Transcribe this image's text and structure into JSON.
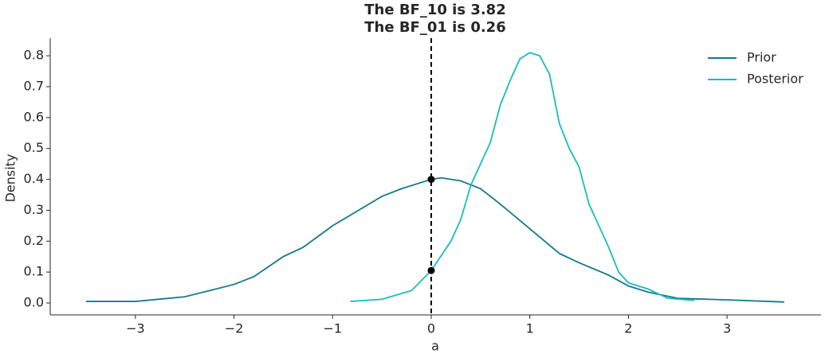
{
  "chart_data": {
    "type": "line",
    "title": [
      "The BF_10 is 3.82",
      "The BF_01 is 0.26"
    ],
    "xlabel": "a",
    "ylabel": "Density",
    "xlim": [
      -3.864,
      3.953
    ],
    "ylim": [
      -0.0386,
      0.857
    ],
    "xticks": [
      {
        "value": -3,
        "label": "−3"
      },
      {
        "value": -2,
        "label": "−2"
      },
      {
        "value": -1,
        "label": "−1"
      },
      0,
      1,
      2,
      3
    ],
    "yticks": [
      {
        "value": 0,
        "label": "0.0"
      },
      0.1,
      0.2,
      0.3,
      0.4,
      0.5,
      0.6,
      0.7,
      0.8
    ],
    "legend": "upper right",
    "series": [
      {
        "name": "Prior",
        "color": "#137a8c",
        "x": [
          -3.5,
          -3,
          -2.5,
          -2,
          -1.8,
          -1.5,
          -1.3,
          -1,
          -0.5,
          -0.3,
          0,
          0.1,
          0.3,
          0.5,
          0.7,
          1,
          1.3,
          1.5,
          1.8,
          2,
          2.2,
          2.5,
          3,
          3.58
        ],
        "values": [
          0.005,
          0.005,
          0.02,
          0.06,
          0.085,
          0.15,
          0.18,
          0.25,
          0.345,
          0.37,
          0.4,
          0.405,
          0.395,
          0.37,
          0.32,
          0.24,
          0.16,
          0.13,
          0.09,
          0.055,
          0.035,
          0.015,
          0.01,
          0.003
        ]
      },
      {
        "name": "Posterior",
        "color": "#17bcc4",
        "x": [
          -0.82,
          -0.5,
          -0.2,
          0,
          0.2,
          0.3,
          0.4,
          0.5,
          0.6,
          0.7,
          0.8,
          0.9,
          1.0,
          1.1,
          1.2,
          1.3,
          1.4,
          1.5,
          1.6,
          1.7,
          1.8,
          1.9,
          2.0,
          2.2,
          2.4,
          2.67
        ],
        "values": [
          0.005,
          0.012,
          0.04,
          0.105,
          0.2,
          0.27,
          0.38,
          0.45,
          0.52,
          0.64,
          0.72,
          0.79,
          0.81,
          0.8,
          0.74,
          0.58,
          0.5,
          0.44,
          0.32,
          0.25,
          0.18,
          0.1,
          0.065,
          0.045,
          0.015,
          0.008
        ]
      }
    ],
    "vline": 0,
    "points": {
      "x": [
        0,
        0
      ],
      "values": [
        0.4,
        0.105
      ]
    }
  }
}
